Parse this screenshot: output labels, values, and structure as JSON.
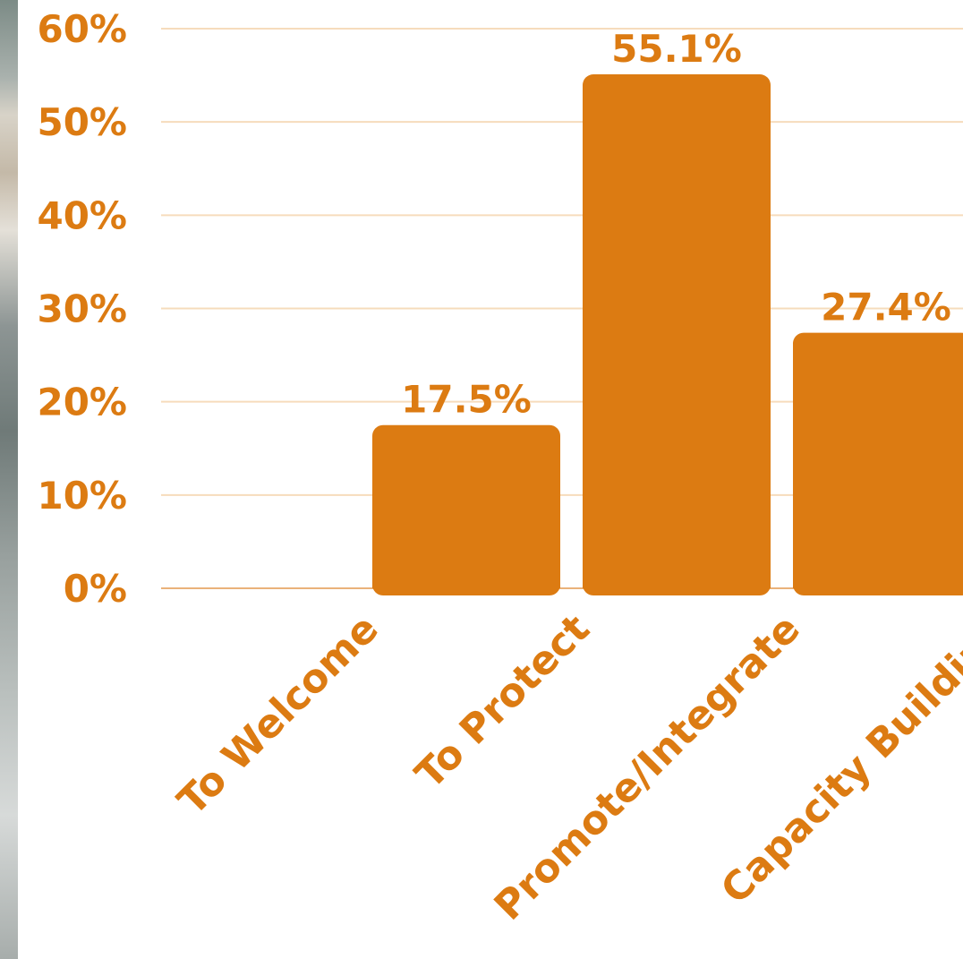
{
  "chart_data": {
    "type": "bar",
    "categories": [
      "To Welcome",
      "To Protect",
      "Promote/Integrate",
      "Capacity Building"
    ],
    "values": [
      0,
      17.5,
      55.1,
      27.4
    ],
    "value_labels": [
      "",
      "17.5%",
      "55.1%",
      "27.4%"
    ],
    "y_ticks": [
      "0%",
      "10%",
      "20%",
      "30%",
      "40%",
      "50%",
      "60%"
    ],
    "ylim": [
      0,
      60
    ],
    "grid": true,
    "title": "",
    "xlabel": "",
    "ylabel": "",
    "colors": {
      "bar": "#dc7b12",
      "text": "#dc7b12",
      "grid": "#f6dcbc",
      "baseline": "#eab27a"
    }
  }
}
